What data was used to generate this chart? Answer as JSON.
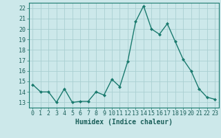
{
  "x": [
    0,
    1,
    2,
    3,
    4,
    5,
    6,
    7,
    8,
    9,
    10,
    11,
    12,
    13,
    14,
    15,
    16,
    17,
    18,
    19,
    20,
    21,
    22,
    23
  ],
  "y": [
    14.7,
    14.0,
    14.0,
    13.0,
    14.3,
    13.0,
    13.1,
    13.1,
    14.0,
    13.7,
    15.2,
    14.5,
    16.9,
    20.7,
    22.2,
    20.0,
    19.5,
    20.5,
    18.8,
    17.1,
    16.0,
    14.3,
    13.5,
    13.3
  ],
  "line_color": "#1a7a6e",
  "marker": "D",
  "marker_size": 2.0,
  "bg_color": "#cce8ea",
  "grid_color": "#aacfd2",
  "axis_color": "#1a7a6e",
  "tick_label_color": "#1a5f5a",
  "xlabel": "Humidex (Indice chaleur)",
  "xlabel_color": "#1a5f5a",
  "xlim": [
    -0.5,
    23.5
  ],
  "ylim": [
    12.5,
    22.5
  ],
  "yticks": [
    13,
    14,
    15,
    16,
    17,
    18,
    19,
    20,
    21,
    22
  ],
  "xticks": [
    0,
    1,
    2,
    3,
    4,
    5,
    6,
    7,
    8,
    9,
    10,
    11,
    12,
    13,
    14,
    15,
    16,
    17,
    18,
    19,
    20,
    21,
    22,
    23
  ],
  "line_width": 1.0,
  "font_size": 6.0,
  "xlabel_fontsize": 7.0
}
